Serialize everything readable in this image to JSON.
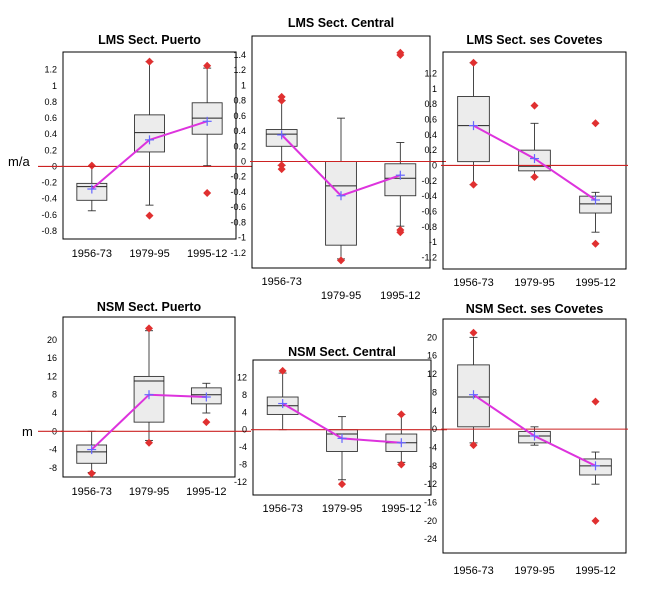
{
  "figure": {
    "row_labels": [
      "m/a",
      "m"
    ],
    "colors": {
      "box_fill": "#ececec",
      "box_stroke": "#333333",
      "zero_line": "#cc2222",
      "mean_line": "#dd33dd",
      "mean_marker": "#6666ff",
      "outlier": "#e03030"
    }
  },
  "chart_data": [
    {
      "type": "box",
      "title": "LMS Sect. Puerto",
      "ylabel": "m/a",
      "ylim": [
        -0.9,
        1.42
      ],
      "yticks": [
        1.2,
        1,
        0.8,
        0.6,
        0.4,
        0.2,
        0,
        -0.2,
        -0.4,
        -0.6,
        -0.8
      ],
      "categories": [
        "1956-73",
        "1979-95",
        "1995-12"
      ],
      "boxes": [
        {
          "min": -0.55,
          "q1": -0.42,
          "median": -0.25,
          "q3": -0.21,
          "max": 0.0,
          "mean": -0.28,
          "outliers": [
            0.01
          ]
        },
        {
          "min": -0.48,
          "q1": 0.18,
          "median": 0.42,
          "q3": 0.64,
          "max": 1.3,
          "mean": 0.33,
          "outliers": [
            1.3,
            -0.61
          ]
        },
        {
          "min": 0.01,
          "q1": 0.4,
          "median": 0.6,
          "q3": 0.79,
          "max": 1.22,
          "mean": 0.56,
          "outliers": [
            1.25,
            -0.33
          ]
        }
      ]
    },
    {
      "type": "box",
      "title": "LMS Sect. Central",
      "ylabel": "",
      "ylim": [
        -1.4,
        1.65
      ],
      "yticks": [
        1.4,
        1.2,
        1,
        0.8,
        0.6,
        0.4,
        0.2,
        0,
        -0.2,
        -0.4,
        -0.6,
        -0.8,
        -1,
        -1.2
      ],
      "categories": [
        "1956-73",
        "1979-95",
        "1995-12"
      ],
      "boxes": [
        {
          "min": -0.05,
          "q1": 0.2,
          "median": 0.36,
          "q3": 0.42,
          "max": 0.8,
          "mean": 0.35,
          "outliers": [
            0.85,
            0.8,
            -0.05,
            -0.1
          ]
        },
        {
          "min": -1.28,
          "q1": -1.1,
          "median": -0.32,
          "q3": 0.0,
          "max": 0.57,
          "mean": -0.45,
          "outliers": [
            -1.3
          ]
        },
        {
          "min": -0.85,
          "q1": -0.45,
          "median": -0.22,
          "q3": -0.03,
          "max": 0.25,
          "mean": -0.18,
          "outliers": [
            1.4,
            1.43,
            -0.9,
            -0.93
          ]
        }
      ]
    },
    {
      "type": "box",
      "title": "LMS Sect. ses Covetes",
      "ylabel": "",
      "ylim": [
        -1.35,
        1.48
      ],
      "yticks": [
        1.2,
        1,
        0.8,
        0.6,
        0.4,
        0.2,
        0,
        -0.2,
        -0.4,
        -0.6,
        -0.8,
        -1,
        -1.2
      ],
      "categories": [
        "1956-73",
        "1979-95",
        "1995-12"
      ],
      "boxes": [
        {
          "min": -0.25,
          "q1": 0.05,
          "median": 0.52,
          "q3": 0.9,
          "max": 1.34,
          "mean": 0.52,
          "outliers": [
            1.34,
            -0.25
          ]
        },
        {
          "min": -0.15,
          "q1": -0.07,
          "median": -0.01,
          "q3": 0.2,
          "max": 0.55,
          "mean": 0.09,
          "outliers": [
            0.78,
            -0.15
          ]
        },
        {
          "min": -0.87,
          "q1": -0.62,
          "median": -0.5,
          "q3": -0.4,
          "max": -0.35,
          "mean": -0.45,
          "outliers": [
            0.55,
            -1.02
          ]
        }
      ]
    },
    {
      "type": "box",
      "title": "NSM Sect. Puerto",
      "ylabel": "m",
      "ylim": [
        -10,
        25
      ],
      "yticks": [
        20,
        16,
        12,
        8,
        4,
        0,
        -4,
        -8
      ],
      "categories": [
        "1956-73",
        "1979-95",
        "1995-12"
      ],
      "boxes": [
        {
          "min": -9,
          "q1": -7,
          "median": -4.5,
          "q3": -3,
          "max": 0,
          "mean": -4,
          "outliers": [
            -9.2
          ]
        },
        {
          "min": -2,
          "q1": 2,
          "median": 11,
          "q3": 12,
          "max": 22,
          "mean": 8,
          "outliers": [
            22.5,
            -2.5
          ]
        },
        {
          "min": 4,
          "q1": 6,
          "median": 8,
          "q3": 9.5,
          "max": 10.5,
          "mean": 7.5,
          "outliers": [
            2
          ]
        }
      ]
    },
    {
      "type": "box",
      "title": "NSM Sect. Central",
      "ylabel": "",
      "ylim": [
        -15,
        16
      ],
      "yticks": [
        12,
        8,
        4,
        0,
        -4,
        -8,
        -12
      ],
      "categories": [
        "1956-73",
        "1979-95",
        "1995-12"
      ],
      "boxes": [
        {
          "min": 0,
          "q1": 3.5,
          "median": 5.5,
          "q3": 7.5,
          "max": 13,
          "mean": 6,
          "outliers": [
            13.5
          ]
        },
        {
          "min": -11.5,
          "q1": -5,
          "median": -1,
          "q3": 0,
          "max": 3,
          "mean": -2,
          "outliers": [
            -12.5
          ]
        },
        {
          "min": -7.5,
          "q1": -5,
          "median": -3,
          "q3": -1,
          "max": 3.5,
          "mean": -3,
          "outliers": [
            3.5,
            -8
          ]
        }
      ]
    },
    {
      "type": "box",
      "title": "NSM Sect. ses Covetes",
      "ylabel": "",
      "ylim": [
        -27,
        24
      ],
      "yticks": [
        20,
        16,
        12,
        8,
        4,
        0,
        -4,
        -8,
        -12,
        -16,
        -20,
        -24
      ],
      "categories": [
        "1956-73",
        "1979-95",
        "1995-12"
      ],
      "boxes": [
        {
          "min": -3,
          "q1": 0.5,
          "median": 7,
          "q3": 14,
          "max": 20,
          "mean": 7.5,
          "outliers": [
            21,
            -3.5
          ]
        },
        {
          "min": -3.5,
          "q1": -3,
          "median": -1.5,
          "q3": -0.5,
          "max": 0.5,
          "mean": -1.5,
          "outliers": []
        },
        {
          "min": -12,
          "q1": -10,
          "median": -8,
          "q3": -6.5,
          "max": -5,
          "mean": -8,
          "outliers": [
            6,
            -20
          ]
        }
      ]
    }
  ]
}
